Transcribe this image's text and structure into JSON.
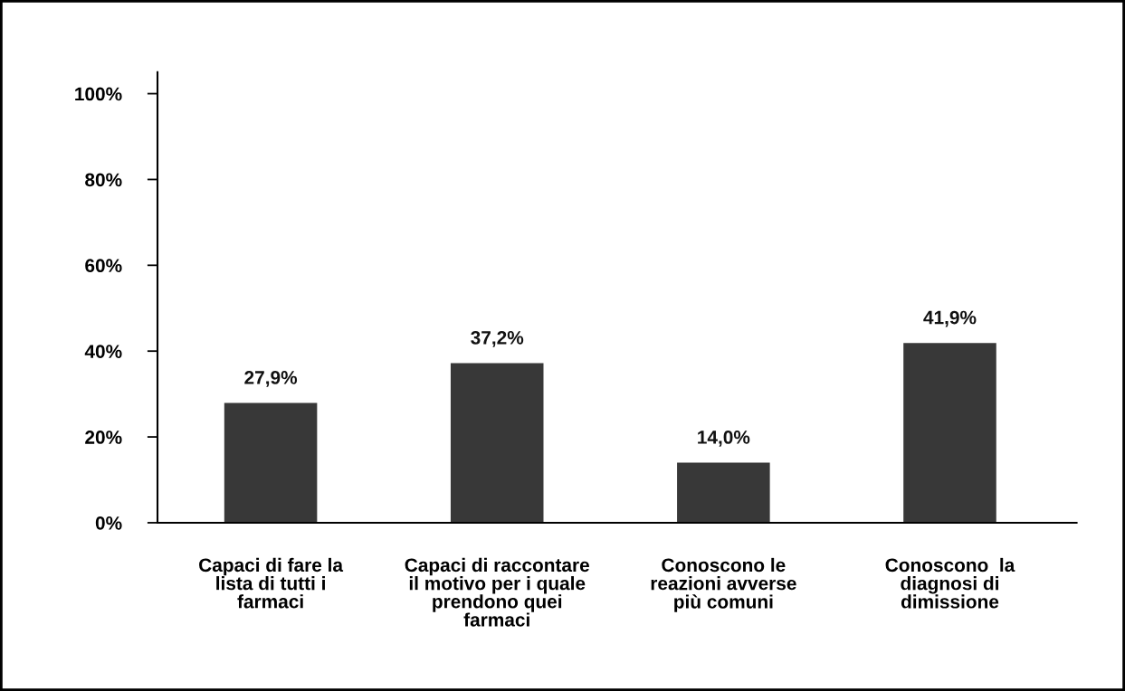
{
  "chart_data": {
    "type": "bar",
    "categories": [
      "Capaci di fare la\nlista di tutti i\nfarmaci",
      "Capaci di raccontare\nil motivo per i quale\nprendono quei\nfarmaci",
      "Conoscono le\nreazioni avverse\npiù comuni",
      "Conoscono  la\ndiagnosi di\ndimissione"
    ],
    "values": [
      27.9,
      37.2,
      14.0,
      41.9
    ],
    "value_labels": [
      "27,9%",
      "37,2%",
      "14,0%",
      "41,9%"
    ],
    "color": "#383838",
    "ylim": [
      0,
      105
    ],
    "yticks": [
      {
        "value": 0,
        "label": "0%"
      },
      {
        "value": 20,
        "label": "20%"
      },
      {
        "value": 40,
        "label": "40%"
      },
      {
        "value": 60,
        "label": "60%"
      },
      {
        "value": 80,
        "label": "80%"
      },
      {
        "value": 100,
        "label": "100%"
      }
    ],
    "grid": false
  }
}
